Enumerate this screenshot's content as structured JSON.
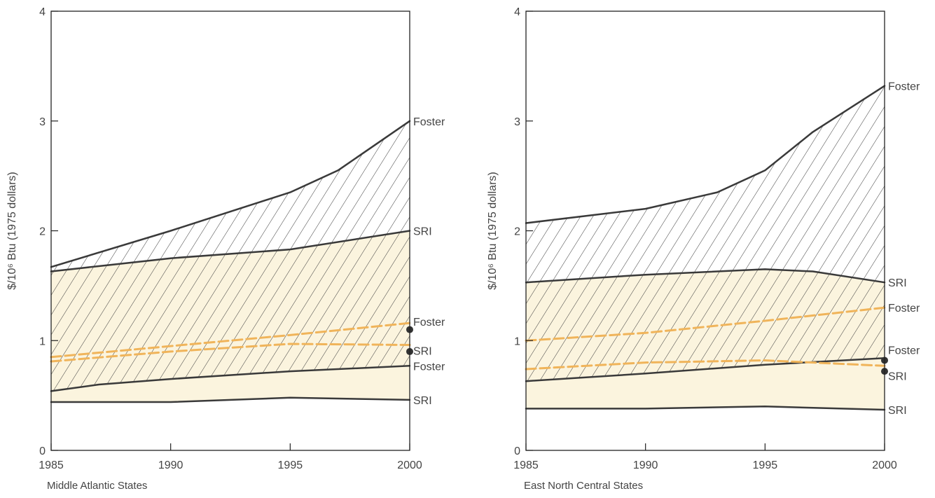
{
  "colors": {
    "line": "#3a3a3a",
    "fill": "#fbf4de",
    "hatch": "#3a3a3a",
    "forecast": "#f0b45a",
    "dot": "#333333",
    "frame": "#222222"
  },
  "chart_data": [
    {
      "type": "line",
      "title": "",
      "xlabel": "Middle Atlantic States",
      "ylabel": "$/10⁶ Btu (1975 dollars)",
      "xlim": [
        1985,
        2000
      ],
      "ylim": [
        0,
        4
      ],
      "xticks": [
        1985,
        1990,
        1995,
        2000
      ],
      "yticks": [
        0,
        1,
        2,
        3,
        4
      ],
      "grid": false,
      "legend": "none",
      "series": [
        {
          "name": "Foster",
          "style": "solid",
          "x": [
            1985,
            1990,
            1995,
            1997,
            2000
          ],
          "y": [
            1.67,
            2.0,
            2.35,
            2.55,
            3.0
          ]
        },
        {
          "name": "SRI",
          "style": "solid",
          "x": [
            1985,
            1990,
            1995,
            2000
          ],
          "y": [
            1.63,
            1.75,
            1.83,
            2.0
          ]
        },
        {
          "name": "Foster",
          "style": "dashed",
          "x": [
            1985,
            1990,
            1995,
            2000
          ],
          "y": [
            0.85,
            0.95,
            1.05,
            1.16
          ]
        },
        {
          "name": "SRI",
          "style": "dashed",
          "x": [
            1985,
            1990,
            1995,
            2000
          ],
          "y": [
            0.81,
            0.9,
            0.97,
            0.96
          ]
        },
        {
          "name": "Foster",
          "style": "solid",
          "x": [
            1985,
            1987,
            1990,
            1995,
            2000
          ],
          "y": [
            0.54,
            0.6,
            0.65,
            0.72,
            0.77
          ]
        },
        {
          "name": "SRI",
          "style": "solid",
          "x": [
            1985,
            1990,
            1995,
            2000
          ],
          "y": [
            0.44,
            0.44,
            0.48,
            0.46
          ]
        }
      ],
      "points": [
        {
          "x": 2000,
          "y": 1.1
        },
        {
          "x": 2000,
          "y": 0.9
        }
      ]
    },
    {
      "type": "line",
      "title": "",
      "xlabel": "East North Central States",
      "ylabel": "$/10⁶ Btu (1975 dollars)",
      "xlim": [
        1985,
        2000
      ],
      "ylim": [
        0,
        4
      ],
      "xticks": [
        1985,
        1990,
        1995,
        2000
      ],
      "yticks": [
        0,
        1,
        2,
        3,
        4
      ],
      "grid": false,
      "legend": "none",
      "series": [
        {
          "name": "Foster",
          "style": "solid",
          "x": [
            1985,
            1990,
            1993,
            1995,
            1997,
            2000
          ],
          "y": [
            2.07,
            2.2,
            2.35,
            2.55,
            2.9,
            3.32
          ]
        },
        {
          "name": "SRI",
          "style": "solid",
          "x": [
            1985,
            1990,
            1995,
            1997,
            2000
          ],
          "y": [
            1.53,
            1.6,
            1.65,
            1.63,
            1.53
          ]
        },
        {
          "name": "Foster",
          "style": "dashed",
          "x": [
            1985,
            1990,
            1995,
            2000
          ],
          "y": [
            1.0,
            1.07,
            1.18,
            1.3
          ]
        },
        {
          "name": "Foster",
          "style": "solid",
          "x": [
            1985,
            1990,
            1995,
            2000
          ],
          "y": [
            0.63,
            0.7,
            0.78,
            0.84
          ]
        },
        {
          "name": "SRI",
          "style": "dashed",
          "x": [
            1985,
            1990,
            1995,
            2000
          ],
          "y": [
            0.74,
            0.8,
            0.82,
            0.77
          ]
        },
        {
          "name": "SRI",
          "style": "solid",
          "x": [
            1985,
            1990,
            1995,
            2000
          ],
          "y": [
            0.38,
            0.38,
            0.4,
            0.37
          ]
        }
      ],
      "points": [
        {
          "x": 2000,
          "y": 0.82
        },
        {
          "x": 2000,
          "y": 0.72
        }
      ]
    }
  ]
}
